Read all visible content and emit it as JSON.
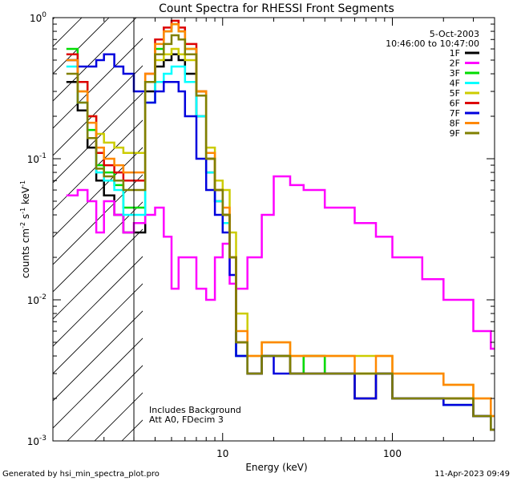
{
  "chart_data": {
    "type": "line",
    "title": "Count Spectra for RHESSI Front Segments",
    "xlabel": "Energy (keV)",
    "ylabel_parts": [
      "counts cm",
      "-2",
      " s",
      "-1",
      " keV",
      "-1"
    ],
    "xscale": "log",
    "yscale": "log",
    "xlim": [
      1,
      400
    ],
    "ylim": [
      0.001,
      1
    ],
    "xticks": [
      {
        "value": 10,
        "label": "10"
      },
      {
        "value": 100,
        "label": "100"
      }
    ],
    "yticks": [
      {
        "value": 1,
        "base": "10",
        "exp": "0"
      },
      {
        "value": 0.1,
        "base": "10",
        "exp": "-1"
      },
      {
        "value": 0.01,
        "base": "10",
        "exp": "-2"
      },
      {
        "value": 0.001,
        "base": "10",
        "exp": "-3"
      }
    ],
    "legend_position": "top-right",
    "date": "5-Oct-2003",
    "time_range": "10:46:00 to 10:47:00",
    "attenuator_boundary_kev": 3,
    "annotations": [
      "Includes Background",
      "Att A0, FDecim 3"
    ],
    "series": [
      {
        "name": "1F",
        "color": "#000000",
        "x": [
          1.2,
          1.4,
          1.6,
          1.8,
          2.0,
          2.3,
          2.6,
          3.0,
          3.5,
          4.0,
          4.5,
          5.0,
          5.5,
          6.0,
          7.0,
          8.0,
          9.0,
          10.0,
          11.0,
          12.0,
          14.0,
          17.0,
          20.0,
          25.0,
          30.0,
          40.0,
          50.0,
          60.0,
          80.0,
          100.0,
          150.0,
          200.0,
          300.0,
          380.0
        ],
        "y": [
          0.35,
          0.22,
          0.12,
          0.07,
          0.055,
          0.04,
          0.03,
          0.03,
          0.3,
          0.45,
          0.5,
          0.55,
          0.5,
          0.4,
          0.2,
          0.08,
          0.05,
          0.04,
          0.02,
          0.004,
          0.003,
          0.004,
          0.004,
          0.003,
          0.004,
          0.003,
          0.003,
          0.002,
          0.003,
          0.002,
          0.002,
          0.0018,
          0.0015,
          0.0012
        ]
      },
      {
        "name": "2F",
        "color": "#ff00ff",
        "x": [
          1.2,
          1.4,
          1.6,
          1.8,
          2.0,
          2.3,
          2.6,
          3.0,
          3.5,
          4.0,
          4.5,
          5.0,
          5.5,
          6.0,
          7.0,
          8.0,
          9.0,
          10.0,
          11.0,
          12.0,
          14.0,
          17.0,
          20.0,
          25.0,
          30.0,
          40.0,
          50.0,
          60.0,
          80.0,
          100.0,
          150.0,
          200.0,
          300.0,
          380.0
        ],
        "y": [
          0.055,
          0.06,
          0.05,
          0.03,
          0.05,
          0.04,
          0.03,
          0.035,
          0.04,
          0.045,
          0.028,
          0.012,
          0.02,
          0.02,
          0.012,
          0.01,
          0.02,
          0.025,
          0.013,
          0.012,
          0.02,
          0.04,
          0.075,
          0.065,
          0.06,
          0.045,
          0.045,
          0.035,
          0.028,
          0.02,
          0.014,
          0.01,
          0.006,
          0.0045
        ]
      },
      {
        "name": "3F",
        "color": "#00dd00",
        "x": [
          1.2,
          1.4,
          1.6,
          1.8,
          2.0,
          2.3,
          2.6,
          3.0,
          3.5,
          4.0,
          4.5,
          5.0,
          5.5,
          6.0,
          7.0,
          8.0,
          9.0,
          10.0,
          11.0,
          12.0,
          14.0,
          17.0,
          20.0,
          25.0,
          30.0,
          40.0,
          50.0,
          60.0,
          80.0,
          100.0,
          150.0,
          200.0,
          300.0,
          380.0
        ],
        "y": [
          0.6,
          0.35,
          0.16,
          0.09,
          0.08,
          0.065,
          0.045,
          0.045,
          0.35,
          0.6,
          0.8,
          0.9,
          0.8,
          0.6,
          0.3,
          0.1,
          0.06,
          0.04,
          0.02,
          0.005,
          0.003,
          0.004,
          0.004,
          0.003,
          0.004,
          0.003,
          0.003,
          0.003,
          0.003,
          0.002,
          0.002,
          0.002,
          0.0015,
          0.0012
        ]
      },
      {
        "name": "4F",
        "color": "#00ffff",
        "x": [
          1.2,
          1.4,
          1.6,
          1.8,
          2.0,
          2.3,
          2.6,
          3.0,
          3.5,
          4.0,
          4.5,
          5.0,
          5.5,
          6.0,
          7.0,
          8.0,
          9.0,
          10.0,
          11.0,
          12.0,
          14.0,
          17.0,
          20.0,
          25.0,
          30.0,
          40.0,
          50.0,
          60.0,
          80.0,
          100.0,
          150.0,
          200.0,
          300.0,
          380.0
        ],
        "y": [
          0.45,
          0.25,
          0.14,
          0.08,
          0.07,
          0.06,
          0.04,
          0.04,
          0.25,
          0.35,
          0.4,
          0.45,
          0.45,
          0.35,
          0.2,
          0.08,
          0.05,
          0.035,
          0.02,
          0.004,
          0.003,
          0.004,
          0.004,
          0.003,
          0.003,
          0.003,
          0.003,
          0.002,
          0.003,
          0.002,
          0.002,
          0.0018,
          0.0015,
          0.0012
        ]
      },
      {
        "name": "5F",
        "color": "#cccc00",
        "x": [
          1.2,
          1.4,
          1.6,
          1.8,
          2.0,
          2.3,
          2.6,
          3.0,
          3.5,
          4.0,
          4.5,
          5.0,
          5.5,
          6.0,
          7.0,
          8.0,
          9.0,
          10.0,
          11.0,
          12.0,
          14.0,
          17.0,
          20.0,
          25.0,
          30.0,
          40.0,
          50.0,
          60.0,
          80.0,
          100.0,
          150.0,
          200.0,
          300.0,
          380.0
        ],
        "y": [
          0.5,
          0.3,
          0.2,
          0.15,
          0.13,
          0.12,
          0.11,
          0.11,
          0.35,
          0.5,
          0.55,
          0.6,
          0.55,
          0.5,
          0.3,
          0.12,
          0.07,
          0.06,
          0.03,
          0.008,
          0.004,
          0.005,
          0.005,
          0.004,
          0.004,
          0.004,
          0.004,
          0.004,
          0.004,
          0.003,
          0.003,
          0.0025,
          0.002,
          0.0015
        ]
      },
      {
        "name": "6F",
        "color": "#dd0000",
        "x": [
          1.2,
          1.4,
          1.6,
          1.8,
          2.0,
          2.3,
          2.6,
          3.0,
          3.5,
          4.0,
          4.5,
          5.0,
          5.5,
          6.0,
          7.0,
          8.0,
          9.0,
          10.0,
          11.0,
          12.0,
          14.0,
          17.0,
          20.0,
          25.0,
          30.0,
          40.0,
          50.0,
          60.0,
          80.0,
          100.0,
          150.0,
          200.0,
          300.0,
          380.0
        ],
        "y": [
          0.55,
          0.35,
          0.2,
          0.11,
          0.09,
          0.08,
          0.07,
          0.07,
          0.4,
          0.7,
          0.85,
          0.95,
          0.85,
          0.65,
          0.3,
          0.1,
          0.06,
          0.04,
          0.02,
          0.005,
          0.003,
          0.004,
          0.004,
          0.003,
          0.003,
          0.003,
          0.003,
          0.002,
          0.003,
          0.002,
          0.002,
          0.002,
          0.0015,
          0.0012
        ]
      },
      {
        "name": "7F",
        "color": "#0000dd",
        "x": [
          1.2,
          1.4,
          1.6,
          1.8,
          2.0,
          2.3,
          2.6,
          3.0,
          3.5,
          4.0,
          4.5,
          5.0,
          5.5,
          6.0,
          7.0,
          8.0,
          9.0,
          10.0,
          11.0,
          12.0,
          14.0,
          17.0,
          20.0,
          25.0,
          30.0,
          40.0,
          50.0,
          60.0,
          80.0,
          100.0,
          150.0,
          200.0,
          300.0,
          380.0
        ],
        "y": [
          0.5,
          0.45,
          0.45,
          0.5,
          0.55,
          0.45,
          0.4,
          0.3,
          0.25,
          0.3,
          0.35,
          0.35,
          0.3,
          0.2,
          0.1,
          0.06,
          0.04,
          0.03,
          0.015,
          0.004,
          0.003,
          0.004,
          0.003,
          0.003,
          0.003,
          0.003,
          0.003,
          0.002,
          0.003,
          0.002,
          0.002,
          0.0018,
          0.0015,
          0.0012
        ]
      },
      {
        "name": "8F",
        "color": "#ff8800",
        "x": [
          1.2,
          1.4,
          1.6,
          1.8,
          2.0,
          2.3,
          2.6,
          3.0,
          3.5,
          4.0,
          4.5,
          5.0,
          5.5,
          6.0,
          7.0,
          8.0,
          9.0,
          10.0,
          11.0,
          12.0,
          14.0,
          17.0,
          20.0,
          25.0,
          30.0,
          40.0,
          50.0,
          60.0,
          80.0,
          100.0,
          150.0,
          200.0,
          300.0,
          380.0
        ],
        "y": [
          0.5,
          0.3,
          0.18,
          0.12,
          0.1,
          0.09,
          0.08,
          0.08,
          0.4,
          0.65,
          0.8,
          0.9,
          0.8,
          0.6,
          0.3,
          0.11,
          0.06,
          0.045,
          0.02,
          0.006,
          0.004,
          0.005,
          0.005,
          0.004,
          0.004,
          0.004,
          0.004,
          0.003,
          0.004,
          0.003,
          0.003,
          0.0025,
          0.002,
          0.0015
        ]
      },
      {
        "name": "9F",
        "color": "#808000",
        "x": [
          1.2,
          1.4,
          1.6,
          1.8,
          2.0,
          2.3,
          2.6,
          3.0,
          3.5,
          4.0,
          4.5,
          5.0,
          5.5,
          6.0,
          7.0,
          8.0,
          9.0,
          10.0,
          11.0,
          12.0,
          14.0,
          17.0,
          20.0,
          25.0,
          30.0,
          40.0,
          50.0,
          60.0,
          80.0,
          100.0,
          150.0,
          200.0,
          300.0,
          380.0
        ],
        "y": [
          0.4,
          0.25,
          0.14,
          0.085,
          0.075,
          0.07,
          0.06,
          0.06,
          0.35,
          0.55,
          0.65,
          0.75,
          0.7,
          0.55,
          0.28,
          0.1,
          0.06,
          0.04,
          0.02,
          0.005,
          0.003,
          0.004,
          0.004,
          0.003,
          0.003,
          0.003,
          0.003,
          0.003,
          0.003,
          0.002,
          0.002,
          0.002,
          0.0015,
          0.0012
        ]
      }
    ]
  },
  "footer": {
    "generated_by": "Generated by hsi_min_spectra_plot.pro",
    "timestamp": "11-Apr-2023 09:49"
  }
}
